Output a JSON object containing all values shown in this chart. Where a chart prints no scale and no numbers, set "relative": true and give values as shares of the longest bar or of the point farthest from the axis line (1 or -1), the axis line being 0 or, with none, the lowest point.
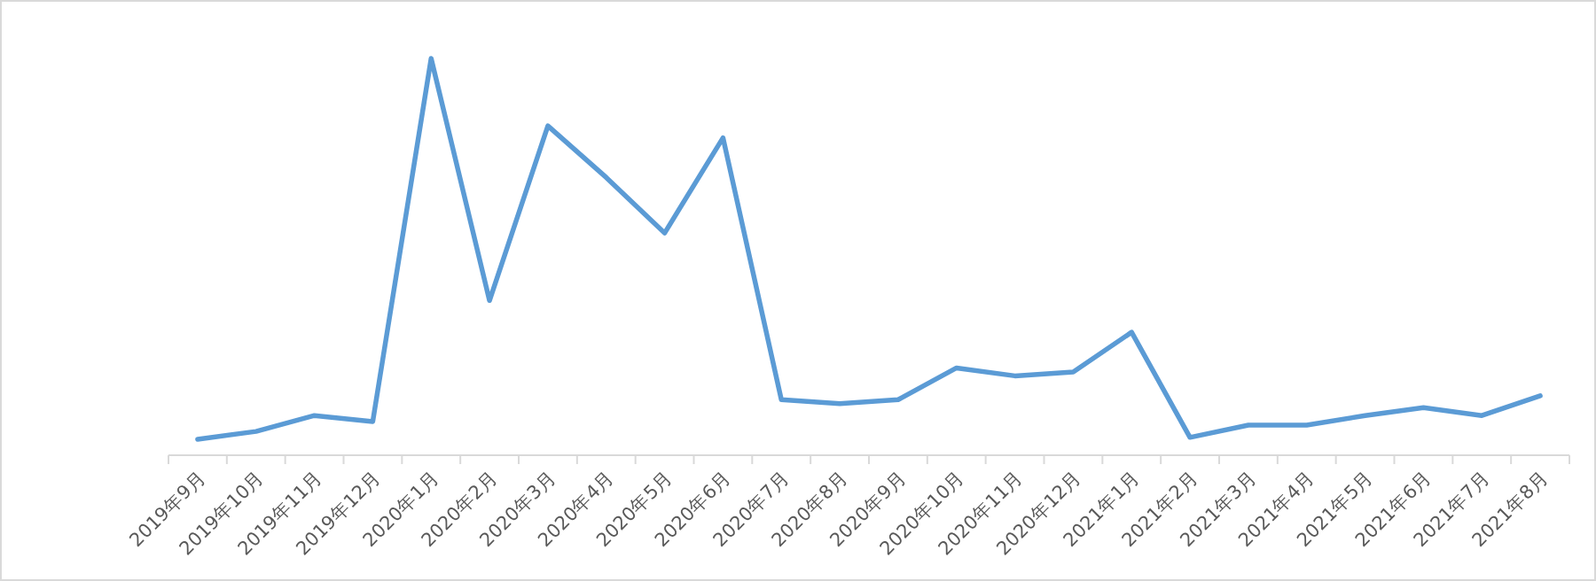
{
  "chart_data": {
    "type": "line",
    "relative": true,
    "categories": [
      "2019年9月",
      "2019年10月",
      "2019年11月",
      "2019年12月",
      "2020年1月",
      "2020年2月",
      "2020年3月",
      "2020年4月",
      "2020年5月",
      "2020年6月",
      "2020年7月",
      "2020年8月",
      "2020年9月",
      "2020年10月",
      "2020年11月",
      "2020年12月",
      "2021年1月",
      "2021年2月",
      "2021年3月",
      "2021年4月",
      "2021年5月",
      "2021年6月",
      "2021年7月",
      "2021年8月"
    ],
    "series": [
      {
        "color": "#5b9bd5",
        "values": [
          0.04,
          0.06,
          0.1,
          0.085,
          1,
          0.39,
          0.83,
          0.7,
          0.56,
          0.8,
          0.14,
          0.13,
          0.14,
          0.22,
          0.2,
          0.21,
          0.31,
          0.045,
          0.076,
          0.076,
          0.1,
          0.12,
          0.1,
          0.15
        ]
      }
    ],
    "marker": "none",
    "line_style": "solid"
  }
}
